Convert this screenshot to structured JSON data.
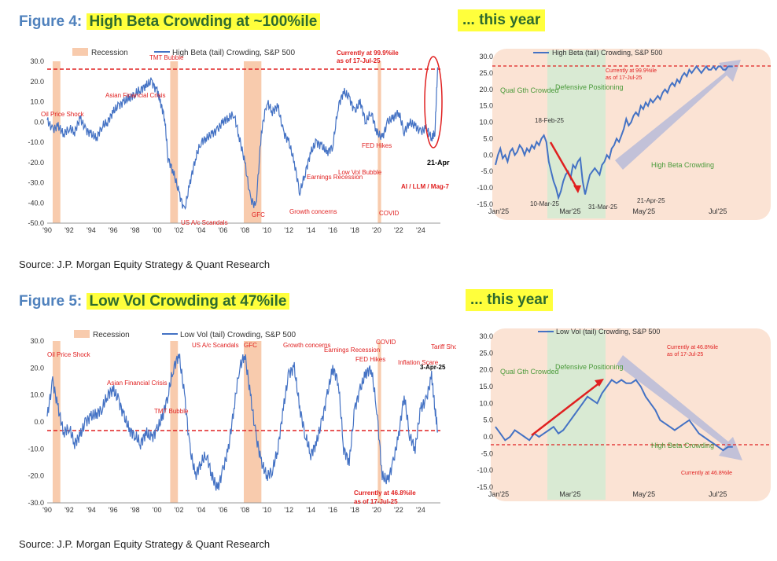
{
  "fig4": {
    "title_prefix": "Figure 4:",
    "title_highlight": "High Beta Crowding at ~100%ile",
    "year_label": "... this year",
    "source": "Source: J.P. Morgan Equity Strategy & Quant Research"
  },
  "fig5": {
    "title_prefix": "Figure 5:",
    "title_highlight": "Low Vol Crowding at 47%ile",
    "year_label": "... this year",
    "source": "Source: J.P. Morgan Equity Strategy & Quant Research"
  },
  "colors": {
    "line": "#4472c4",
    "recession": "#f8cbad",
    "red": "#e02020",
    "green_zone": "#d9ead3",
    "orange_zone": "#fbe3d4",
    "title_blue": "#4f81bd",
    "highlight": "#ffff3c",
    "title_green": "#2e6b2e"
  },
  "chart_data": [
    {
      "id": "fig4-long",
      "type": "line",
      "legend": [
        "Recession",
        "High Beta (tail) Crowding, S&P 500"
      ],
      "x_ticks": [
        "'90",
        "'92",
        "'94",
        "'96",
        "'98",
        "'00",
        "'02",
        "'04",
        "'06",
        "'08",
        "'10",
        "'12",
        "'14",
        "'16",
        "'18",
        "'20",
        "'22",
        "'24"
      ],
      "y_ticks": [
        "30.0",
        "20.0",
        "10.0",
        "0.0",
        "-10.0",
        "-20.0",
        "-30.0",
        "-40.0",
        "-50.0"
      ],
      "ylim": [
        -50,
        30
      ],
      "xlim": [
        1990,
        2025.8
      ],
      "threshold": 27,
      "recessions": [
        [
          1990.5,
          1991.2
        ],
        [
          2001.2,
          2001.9
        ],
        [
          2007.9,
          2009.5
        ],
        [
          2020.1,
          2020.4
        ]
      ],
      "series": [
        {
          "name": "High Beta (tail) Crowding, S&P 500",
          "x": [
            1990,
            1990.5,
            1991,
            1991.5,
            1992,
            1992.5,
            1993,
            1993.5,
            1994,
            1994.5,
            1995,
            1995.5,
            1996,
            1996.5,
            1997,
            1997.5,
            1998,
            1998.5,
            1999,
            1999.5,
            2000,
            2000.3,
            2000.7,
            2001,
            2001.5,
            2002,
            2002.5,
            2003,
            2003.5,
            2004,
            2004.5,
            2005,
            2005.5,
            2006,
            2006.5,
            2007,
            2007.5,
            2008,
            2008.5,
            2009,
            2009.5,
            2010,
            2010.5,
            2011,
            2011.5,
            2012,
            2012.5,
            2013,
            2013.5,
            2014,
            2014.5,
            2015,
            2015.5,
            2016,
            2016.5,
            2017,
            2017.5,
            2018,
            2018.5,
            2019,
            2019.5,
            2020,
            2020.5,
            2021,
            2021.5,
            2022,
            2022.5,
            2023,
            2023.5,
            2024,
            2024.5,
            2025,
            2025.3,
            2025.55
          ],
          "values": [
            1,
            -4,
            -2,
            -6,
            -3,
            -5,
            2,
            -4,
            -6,
            -8,
            -2,
            0,
            5,
            8,
            10,
            12,
            14,
            16,
            18,
            20,
            15,
            10,
            2,
            -18,
            -25,
            -35,
            -44,
            -30,
            -18,
            -10,
            -8,
            -6,
            -4,
            0,
            2,
            4,
            -8,
            -20,
            -38,
            -42,
            -5,
            10,
            5,
            8,
            -5,
            -10,
            -20,
            -35,
            -25,
            -15,
            -10,
            -12,
            -15,
            -12,
            8,
            15,
            12,
            5,
            10,
            0,
            5,
            -5,
            -8,
            0,
            2,
            5,
            -5,
            0,
            -2,
            -5,
            -3,
            -8,
            -5,
            27
          ]
        }
      ],
      "annotations": [
        "Oil Price Shock",
        "Asian Financial Crisis",
        "TMT Bubble",
        "US A/c Scandals",
        "GFC",
        "Growth concerns",
        "Earnings Recession",
        "Low Vol Bubble",
        "FED Hikes",
        "COVID",
        "AI / LLM / Mag-7",
        "21-Apr",
        "Currently at 99.9%ile",
        "as of 17-Jul-25"
      ]
    },
    {
      "id": "fig4-ytd",
      "type": "line",
      "legend": [
        "High Beta (tail) Crowding, S&P 500"
      ],
      "x_ticks": [
        "Jan'25",
        "Mar'25",
        "May'25",
        "Jul'25"
      ],
      "y_ticks": [
        "30.0",
        "25.0",
        "20.0",
        "15.0",
        "10.0",
        "5.0",
        "0.0",
        "-5.0",
        "-10.0",
        "-15.0"
      ],
      "ylim": [
        -15,
        30
      ],
      "threshold": 27,
      "zones": [
        "Qual Gth Crowded",
        "Defensive Positioning",
        "High Beta Crowding"
      ],
      "series": [
        {
          "name": "High Beta (tail) Crowding, S&P 500",
          "x": [
            0,
            2,
            4,
            6,
            8,
            10,
            12,
            14,
            16,
            18,
            20,
            22,
            24,
            26,
            28,
            30,
            32,
            34,
            36,
            38,
            40,
            42,
            44,
            46,
            48,
            50,
            52,
            54,
            56,
            58,
            60,
            62,
            64,
            66,
            68,
            70,
            72,
            74,
            76,
            78,
            80,
            82,
            84,
            86,
            88,
            90,
            92,
            94,
            96,
            98,
            100,
            102,
            104,
            106,
            108,
            110,
            112,
            114,
            116,
            118,
            120,
            122,
            124,
            126,
            128,
            130,
            132,
            134,
            136,
            138,
            140,
            142,
            144,
            146,
            148,
            150,
            152,
            154,
            156,
            158,
            160,
            162,
            164,
            166,
            168,
            170,
            172,
            174,
            176,
            178,
            180,
            182,
            184,
            186,
            188,
            190,
            192,
            194,
            196
          ],
          "values": [
            -3,
            0,
            2,
            -1,
            0,
            -2,
            1,
            2,
            0,
            1,
            3,
            2,
            0,
            2,
            1,
            3,
            2,
            4,
            3,
            5,
            6,
            4,
            -2,
            -5,
            -8,
            -10,
            -13,
            -11,
            -8,
            -6,
            -5,
            -7,
            -3,
            -4,
            -2,
            -1,
            -8,
            -12,
            -9,
            -6,
            -5,
            -4,
            -5,
            -6,
            -3,
            -2,
            0,
            -1,
            2,
            3,
            5,
            4,
            6,
            8,
            11,
            9,
            10,
            12,
            13,
            12,
            15,
            14,
            16,
            15,
            17,
            16,
            17,
            18,
            17,
            19,
            20,
            19,
            21,
            22,
            21,
            23,
            22,
            24,
            25,
            24,
            26,
            25,
            26,
            27,
            26,
            25,
            26,
            27,
            26,
            26,
            27,
            26,
            27,
            27,
            26,
            26,
            27,
            27,
            27
          ]
        }
      ],
      "annotations": [
        "18-Feb-25",
        "10-Mar-25",
        "31-Mar-25",
        "21-Apr-25",
        "Currently at 99.9%ile",
        "as of 17-Jul-25"
      ]
    },
    {
      "id": "fig5-long",
      "type": "line",
      "legend": [
        "Recession",
        "Low Vol (tail) Crowding, S&P 500"
      ],
      "x_ticks": [
        "'90",
        "'92",
        "'94",
        "'96",
        "'98",
        "'00",
        "'02",
        "'04",
        "'06",
        "'08",
        "'10",
        "'12",
        "'14",
        "'16",
        "'18",
        "'20",
        "'22",
        "'24"
      ],
      "y_ticks": [
        "30.0",
        "20.0",
        "10.0",
        "0.0",
        "-10.0",
        "-20.0",
        "-30.0"
      ],
      "ylim": [
        -30,
        30
      ],
      "xlim": [
        1990,
        2025.8
      ],
      "threshold": -3,
      "recessions": [
        [
          1990.5,
          1991.2
        ],
        [
          2001.2,
          2001.9
        ],
        [
          2007.9,
          2009.5
        ],
        [
          2020.1,
          2020.4
        ]
      ],
      "series": [
        {
          "name": "Low Vol (tail) Crowding, S&P 500",
          "x": [
            1990,
            1990.5,
            1991,
            1991.5,
            1992,
            1992.5,
            1993,
            1993.5,
            1994,
            1994.5,
            1995,
            1995.5,
            1996,
            1996.5,
            1997,
            1997.5,
            1998,
            1998.5,
            1999,
            1999.5,
            2000,
            2000.5,
            2001,
            2001.5,
            2002,
            2002.5,
            2003,
            2003.5,
            2004,
            2004.5,
            2005,
            2005.5,
            2006,
            2006.5,
            2007,
            2007.5,
            2008,
            2008.5,
            2009,
            2009.5,
            2010,
            2010.5,
            2011,
            2011.5,
            2012,
            2012.5,
            2013,
            2013.5,
            2014,
            2014.5,
            2015,
            2015.5,
            2016,
            2016.5,
            2017,
            2017.5,
            2018,
            2018.5,
            2019,
            2019.5,
            2020,
            2020.5,
            2021,
            2021.5,
            2022,
            2022.5,
            2023,
            2023.5,
            2024,
            2024.5,
            2025,
            2025.3,
            2025.55
          ],
          "values": [
            2,
            15,
            5,
            -4,
            -2,
            -8,
            -5,
            0,
            2,
            3,
            5,
            10,
            12,
            8,
            2,
            -3,
            -5,
            -8,
            -4,
            -6,
            -3,
            2,
            10,
            20,
            25,
            10,
            -10,
            -20,
            -15,
            -12,
            -20,
            -25,
            -18,
            -10,
            5,
            20,
            25,
            10,
            -5,
            -15,
            -20,
            -18,
            -10,
            5,
            18,
            20,
            5,
            -5,
            -12,
            -8,
            0,
            10,
            20,
            15,
            -10,
            -15,
            5,
            12,
            18,
            20,
            5,
            -20,
            -22,
            -15,
            -5,
            10,
            -5,
            -10,
            5,
            8,
            17,
            5,
            -3
          ]
        }
      ],
      "annotations": [
        "Oil Price Shock",
        "Asian Financial Crisis",
        "TMT Bubble",
        "US A/c Scandals",
        "GFC",
        "Growth concerns",
        "Earnings Recession",
        "FED Hikes",
        "COVID",
        "Inflation Scare",
        "Tariff Shock",
        "3-Apr-25",
        "Currently at 46.8%ile",
        "as of 17-Jul-25"
      ]
    },
    {
      "id": "fig5-ytd",
      "type": "line",
      "legend": [
        "Low Vol (tail) Crowding, S&P 500"
      ],
      "x_ticks": [
        "Jan'25",
        "Mar'25",
        "May'25",
        "Jul'25"
      ],
      "y_ticks": [
        "30.0",
        "25.0",
        "20.0",
        "15.0",
        "10.0",
        "5.0",
        "0.0",
        "-5.0",
        "-10.0",
        "-15.0"
      ],
      "ylim": [
        -15,
        30
      ],
      "threshold": -3,
      "zones": [
        "Qual Gth Crowded",
        "Defensive Positioning",
        "High Beta Crowding"
      ],
      "series": [
        {
          "name": "Low Vol (tail) Crowding, S&P 500",
          "x": [
            0,
            4,
            8,
            12,
            16,
            20,
            24,
            28,
            32,
            36,
            40,
            44,
            48,
            52,
            56,
            60,
            64,
            68,
            72,
            76,
            80,
            84,
            88,
            92,
            96,
            100,
            104,
            108,
            112,
            116,
            120,
            124,
            128,
            132,
            136,
            140,
            144,
            148,
            152,
            156,
            160,
            164,
            168,
            172,
            176,
            180,
            184,
            188,
            192,
            196
          ],
          "values": [
            3,
            1,
            -1,
            0,
            2,
            1,
            0,
            -1,
            1,
            0,
            1,
            2,
            3,
            1,
            2,
            4,
            6,
            8,
            10,
            12,
            11,
            10,
            13,
            15,
            17,
            16,
            17,
            16,
            16,
            17,
            15,
            12,
            10,
            8,
            5,
            4,
            3,
            2,
            3,
            4,
            5,
            3,
            1,
            0,
            -1,
            -2,
            -3,
            -4,
            -3,
            -3
          ]
        }
      ],
      "annotations": [
        "Currently at 46.8%ile",
        "as of 17-Jul-25",
        "Currently at 46.8%ile"
      ]
    }
  ]
}
